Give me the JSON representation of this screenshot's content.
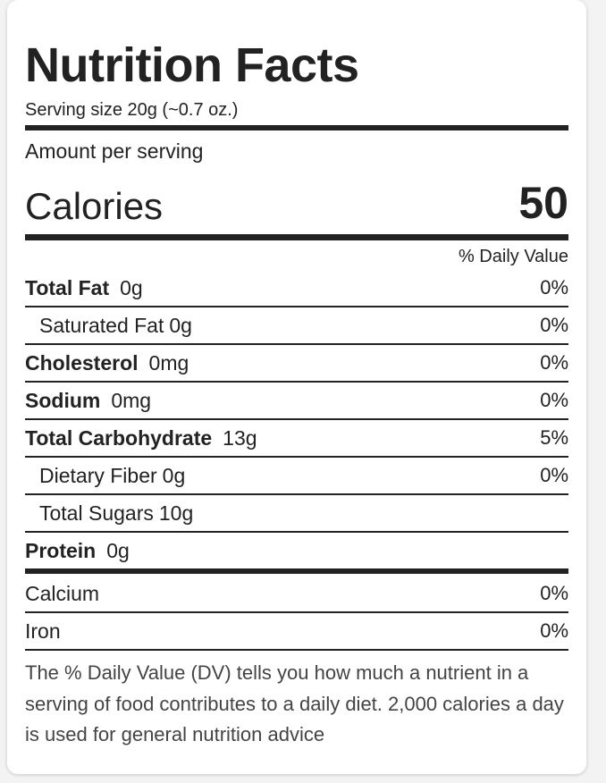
{
  "header": {
    "title": "Nutrition Facts",
    "serving_size": "Serving size 20g (~0.7 oz.)"
  },
  "calories": {
    "heading": "Amount per serving",
    "label": "Calories",
    "value": "50"
  },
  "daily_value_heading": "% Daily Value",
  "nutrients": [
    {
      "name": "Total Fat",
      "amount": "0g",
      "dv": "0%",
      "sub": [
        {
          "name": "Saturated Fat",
          "amount": "0g",
          "dv": "0%"
        }
      ]
    },
    {
      "name": "Cholesterol",
      "amount": "0mg",
      "dv": "0%"
    },
    {
      "name": "Sodium",
      "amount": "0mg",
      "dv": "0%"
    },
    {
      "name": "Total Carbohydrate",
      "amount": "13g",
      "dv": "5%",
      "sub": [
        {
          "name": "Dietary Fiber",
          "amount": "0g",
          "dv": "0%"
        },
        {
          "name": "Total Sugars",
          "amount": "10g"
        }
      ]
    },
    {
      "name": "Protein",
      "amount": "0g"
    }
  ],
  "minerals": [
    {
      "name": "Calcium",
      "dv": "0%"
    },
    {
      "name": "Iron",
      "dv": "0%"
    }
  ],
  "footnote": "The % Daily Value (DV) tells you how much a nutrient in a serving of food contributes to a daily diet. 2,000 calories a day is used for general nutrition advice"
}
